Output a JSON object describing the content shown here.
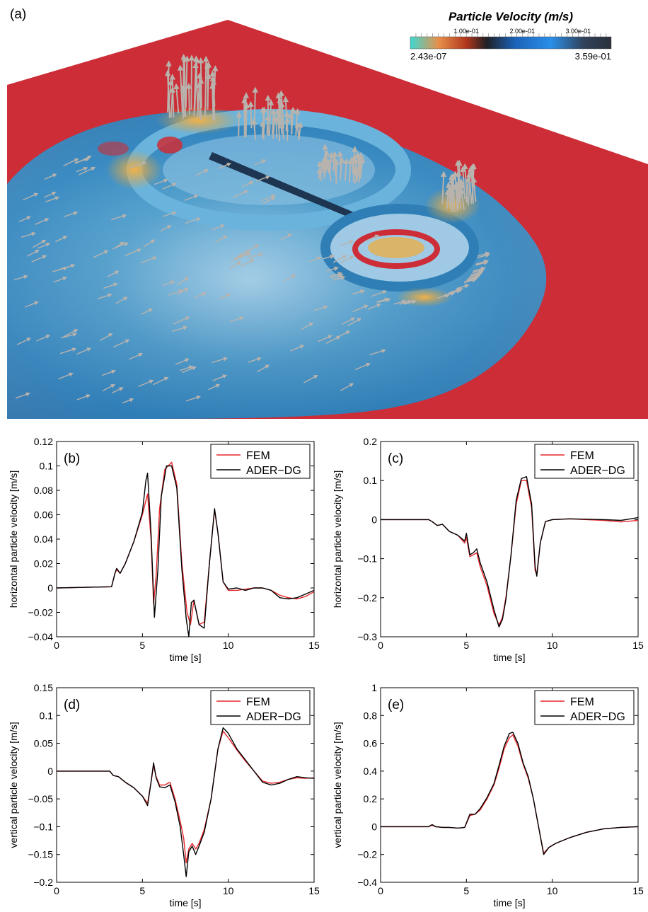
{
  "panel_a": {
    "label": "(a)",
    "colorbar": {
      "title": "Particle Velocity (m/s)",
      "tick_labels": [
        "1.00e-01",
        "2.00e-01",
        "3.00e-01"
      ],
      "tick_values": [
        0.1,
        0.2,
        0.3
      ],
      "min_label": "2.43e-07",
      "max_label": "3.59e-01",
      "min": 2.43e-07,
      "max": 0.359,
      "colors": [
        "#3fd7d0",
        "#e8904a",
        "#b0361d",
        "#1f1f24",
        "#1b62b8",
        "#2a8fe8",
        "#31425c",
        "#2a2f3a"
      ]
    },
    "colors": {
      "background": "#cc2d36",
      "field_blue": "#3189c1",
      "field_light": "#a9d3ea",
      "highlight_orange": "#e0a23a",
      "arrow": "#b9b3ad"
    }
  },
  "chart_data": [
    {
      "id": "b",
      "type": "line",
      "panel_label": "(b)",
      "xlabel": "time [s]",
      "ylabel": "horizontal particle velocity [m/s]",
      "xlim": [
        0,
        15
      ],
      "ylim": [
        -0.04,
        0.12
      ],
      "xticks": [
        0,
        5,
        10,
        15
      ],
      "yticks": [
        -0.04,
        -0.02,
        0,
        0.02,
        0.04,
        0.06,
        0.08,
        0.1,
        0.12
      ],
      "ytick_labels": [
        "−0.04",
        "−0.02",
        "0",
        "0.02",
        "0.04",
        "0.06",
        "0.08",
        "0.1",
        "0.12"
      ],
      "legend_position": "top-right",
      "series": [
        {
          "name": "FEM",
          "color": "#e8262b",
          "x": [
            0,
            3.2,
            3.4,
            3.5,
            3.7,
            4.0,
            4.5,
            5.0,
            5.3,
            5.5,
            5.65,
            5.8,
            6.0,
            6.3,
            6.7,
            7.0,
            7.3,
            7.6,
            7.8,
            8.0,
            8.3,
            8.6,
            8.9,
            9.2,
            9.4,
            9.7,
            10.0,
            10.5,
            11.0,
            11.5,
            12.0,
            12.5,
            13.0,
            13.5,
            14.0,
            14.5,
            15
          ],
          "y": [
            0,
            0.001,
            0.012,
            0.015,
            0.012,
            0.02,
            0.038,
            0.06,
            0.077,
            0.04,
            -0.013,
            0.01,
            0.065,
            0.097,
            0.103,
            0.085,
            0.02,
            -0.02,
            -0.03,
            -0.01,
            -0.03,
            -0.028,
            0.02,
            0.064,
            0.045,
            0.005,
            -0.002,
            -0.002,
            -0.001,
            0.0,
            0.0,
            -0.002,
            -0.006,
            -0.008,
            -0.009,
            -0.007,
            -0.003
          ]
        },
        {
          "name": "ADER−DG",
          "color": "#000000",
          "x": [
            0,
            3.2,
            3.4,
            3.5,
            3.7,
            4.0,
            4.5,
            5.0,
            5.2,
            5.3,
            5.5,
            5.7,
            5.9,
            6.1,
            6.4,
            6.7,
            7.0,
            7.3,
            7.55,
            7.7,
            7.85,
            8.0,
            8.3,
            8.6,
            8.9,
            9.2,
            9.4,
            9.7,
            10.0,
            10.5,
            11.0,
            11.5,
            12.0,
            12.5,
            13.0,
            13.5,
            14.0,
            14.5,
            15
          ],
          "y": [
            0,
            0.001,
            0.012,
            0.016,
            0.012,
            0.02,
            0.038,
            0.062,
            0.088,
            0.094,
            0.045,
            -0.024,
            0.015,
            0.075,
            0.1,
            0.1,
            0.082,
            0.015,
            -0.025,
            -0.04,
            -0.012,
            -0.01,
            -0.03,
            -0.033,
            0.02,
            0.065,
            0.045,
            0.005,
            -0.001,
            0.0,
            -0.002,
            0.0,
            0.0,
            -0.002,
            -0.008,
            -0.009,
            -0.008,
            -0.005,
            -0.002
          ]
        }
      ]
    },
    {
      "id": "c",
      "type": "line",
      "panel_label": "(c)",
      "xlabel": "time [s]",
      "ylabel": "horizontal particle velocity [m/s]",
      "xlim": [
        0,
        15
      ],
      "ylim": [
        -0.3,
        0.2
      ],
      "xticks": [
        0,
        5,
        10,
        15
      ],
      "yticks": [
        -0.3,
        -0.2,
        -0.1,
        0,
        0.1,
        0.2
      ],
      "ytick_labels": [
        "−0.3",
        "−0.2",
        "−0.1",
        "0",
        "0.1",
        "0.2"
      ],
      "legend_position": "top-right",
      "series": [
        {
          "name": "FEM",
          "color": "#e8262b",
          "x": [
            0,
            2.8,
            3.0,
            3.3,
            3.6,
            4.0,
            4.5,
            4.9,
            5.0,
            5.2,
            5.4,
            5.6,
            5.8,
            6.2,
            6.6,
            6.9,
            7.1,
            7.3,
            7.6,
            7.9,
            8.2,
            8.5,
            8.8,
            9.0,
            9.1,
            9.3,
            9.6,
            10.0,
            11.0,
            12.0,
            13.0,
            14.0,
            15
          ],
          "y": [
            0,
            0,
            -0.005,
            -0.015,
            -0.012,
            -0.03,
            -0.04,
            -0.06,
            -0.045,
            -0.095,
            -0.09,
            -0.085,
            -0.12,
            -0.17,
            -0.24,
            -0.27,
            -0.25,
            -0.2,
            -0.09,
            0.04,
            0.1,
            0.1,
            0.03,
            -0.13,
            -0.14,
            -0.06,
            -0.005,
            0.0,
            0.002,
            0.0,
            -0.002,
            -0.006,
            -0.002
          ]
        },
        {
          "name": "ADER−DG",
          "color": "#000000",
          "x": [
            0,
            2.8,
            3.0,
            3.3,
            3.6,
            4.0,
            4.5,
            4.9,
            5.0,
            5.2,
            5.4,
            5.6,
            5.8,
            6.2,
            6.6,
            6.9,
            7.1,
            7.3,
            7.6,
            7.9,
            8.2,
            8.5,
            8.8,
            9.0,
            9.1,
            9.3,
            9.6,
            10.0,
            11.0,
            12.0,
            13.0,
            14.0,
            15
          ],
          "y": [
            0,
            0,
            -0.005,
            -0.015,
            -0.012,
            -0.03,
            -0.04,
            -0.055,
            -0.035,
            -0.09,
            -0.085,
            -0.075,
            -0.11,
            -0.16,
            -0.23,
            -0.275,
            -0.255,
            -0.205,
            -0.09,
            0.05,
            0.105,
            0.11,
            0.04,
            -0.12,
            -0.145,
            -0.06,
            -0.005,
            0.0,
            0.002,
            0.001,
            0.0,
            -0.002,
            0.005
          ]
        }
      ]
    },
    {
      "id": "d",
      "type": "line",
      "panel_label": "(d)",
      "xlabel": "time [s]",
      "ylabel": "vertical particle velocity [m/s]",
      "xlim": [
        0,
        15
      ],
      "ylim": [
        -0.2,
        0.15
      ],
      "xticks": [
        0,
        5,
        10,
        15
      ],
      "yticks": [
        -0.2,
        -0.15,
        -0.1,
        -0.05,
        0,
        0.05,
        0.1,
        0.15
      ],
      "ytick_labels": [
        "−0.2",
        "−0.15",
        "−0.1",
        "−0.05",
        "0",
        "0.05",
        "0.1",
        "0.15"
      ],
      "legend_position": "top-right",
      "series": [
        {
          "name": "FEM",
          "color": "#e8262b",
          "x": [
            0,
            3.1,
            3.3,
            3.6,
            4.0,
            4.5,
            5.0,
            5.3,
            5.5,
            5.65,
            5.8,
            6.0,
            6.3,
            6.6,
            6.9,
            7.2,
            7.4,
            7.55,
            7.7,
            7.9,
            8.1,
            8.3,
            8.6,
            9.0,
            9.4,
            9.7,
            10.0,
            10.5,
            11.0,
            11.5,
            12.0,
            12.5,
            13.0,
            13.5,
            14.0,
            14.5,
            15
          ],
          "y": [
            0,
            0,
            -0.008,
            -0.01,
            -0.02,
            -0.03,
            -0.045,
            -0.058,
            -0.02,
            0.01,
            -0.01,
            -0.025,
            -0.025,
            -0.02,
            -0.05,
            -0.09,
            -0.12,
            -0.165,
            -0.14,
            -0.13,
            -0.14,
            -0.13,
            -0.105,
            -0.05,
            0.04,
            0.072,
            0.06,
            0.038,
            0.018,
            0.0,
            -0.018,
            -0.022,
            -0.02,
            -0.015,
            -0.012,
            -0.013,
            -0.012
          ]
        },
        {
          "name": "ADER−DG",
          "color": "#000000",
          "x": [
            0,
            3.1,
            3.3,
            3.6,
            4.0,
            4.5,
            5.0,
            5.3,
            5.5,
            5.65,
            5.8,
            6.0,
            6.3,
            6.6,
            6.9,
            7.2,
            7.4,
            7.55,
            7.7,
            7.9,
            8.1,
            8.3,
            8.6,
            9.0,
            9.4,
            9.7,
            10.0,
            10.5,
            11.0,
            11.5,
            12.0,
            12.5,
            13.0,
            13.5,
            14.0,
            14.5,
            15
          ],
          "y": [
            0,
            0,
            -0.008,
            -0.01,
            -0.02,
            -0.03,
            -0.045,
            -0.062,
            -0.02,
            0.015,
            -0.012,
            -0.028,
            -0.03,
            -0.025,
            -0.055,
            -0.1,
            -0.15,
            -0.19,
            -0.145,
            -0.135,
            -0.15,
            -0.135,
            -0.11,
            -0.05,
            0.04,
            0.078,
            0.068,
            0.04,
            0.02,
            0.0,
            -0.02,
            -0.025,
            -0.022,
            -0.015,
            -0.01,
            -0.012,
            -0.013
          ]
        }
      ]
    },
    {
      "id": "e",
      "type": "line",
      "panel_label": "(e)",
      "xlabel": "time [s]",
      "ylabel": "vertical particle velocity [m/s]",
      "xlim": [
        0,
        15
      ],
      "ylim": [
        -0.4,
        1
      ],
      "xticks": [
        0,
        5,
        10,
        15
      ],
      "yticks": [
        -0.4,
        -0.2,
        0,
        0.2,
        0.4,
        0.6,
        0.8,
        1
      ],
      "ytick_labels": [
        "−0.4",
        "−0.2",
        "0",
        "0.2",
        "0.4",
        "0.6",
        "0.8",
        "1"
      ],
      "legend_position": "top-right",
      "series": [
        {
          "name": "FEM",
          "color": "#e8262b",
          "x": [
            0,
            2.8,
            3.0,
            3.2,
            3.6,
            4.0,
            4.5,
            4.9,
            5.2,
            5.5,
            5.8,
            6.2,
            6.6,
            6.9,
            7.2,
            7.5,
            7.7,
            8.0,
            8.3,
            8.6,
            8.9,
            9.2,
            9.5,
            9.8,
            10.2,
            11.0,
            12.0,
            13.0,
            14.0,
            15
          ],
          "y": [
            0,
            0,
            0.01,
            0.0,
            -0.005,
            -0.005,
            -0.01,
            -0.005,
            0.08,
            0.09,
            0.12,
            0.2,
            0.3,
            0.42,
            0.56,
            0.64,
            0.66,
            0.58,
            0.45,
            0.35,
            0.2,
            0.0,
            -0.19,
            -0.15,
            -0.12,
            -0.08,
            -0.04,
            -0.015,
            -0.005,
            0.0
          ]
        },
        {
          "name": "ADER−DG",
          "color": "#000000",
          "x": [
            0,
            2.8,
            3.0,
            3.2,
            3.6,
            4.0,
            4.5,
            4.9,
            5.2,
            5.5,
            5.8,
            6.2,
            6.6,
            6.9,
            7.2,
            7.5,
            7.7,
            8.0,
            8.3,
            8.6,
            8.9,
            9.2,
            9.5,
            9.8,
            10.2,
            11.0,
            12.0,
            13.0,
            14.0,
            15
          ],
          "y": [
            0,
            0,
            0.015,
            0.0,
            -0.005,
            -0.005,
            -0.01,
            -0.005,
            0.09,
            0.09,
            0.13,
            0.21,
            0.31,
            0.44,
            0.58,
            0.67,
            0.68,
            0.6,
            0.46,
            0.36,
            0.2,
            0.0,
            -0.2,
            -0.15,
            -0.12,
            -0.08,
            -0.04,
            -0.015,
            -0.005,
            0.0
          ]
        }
      ]
    }
  ]
}
